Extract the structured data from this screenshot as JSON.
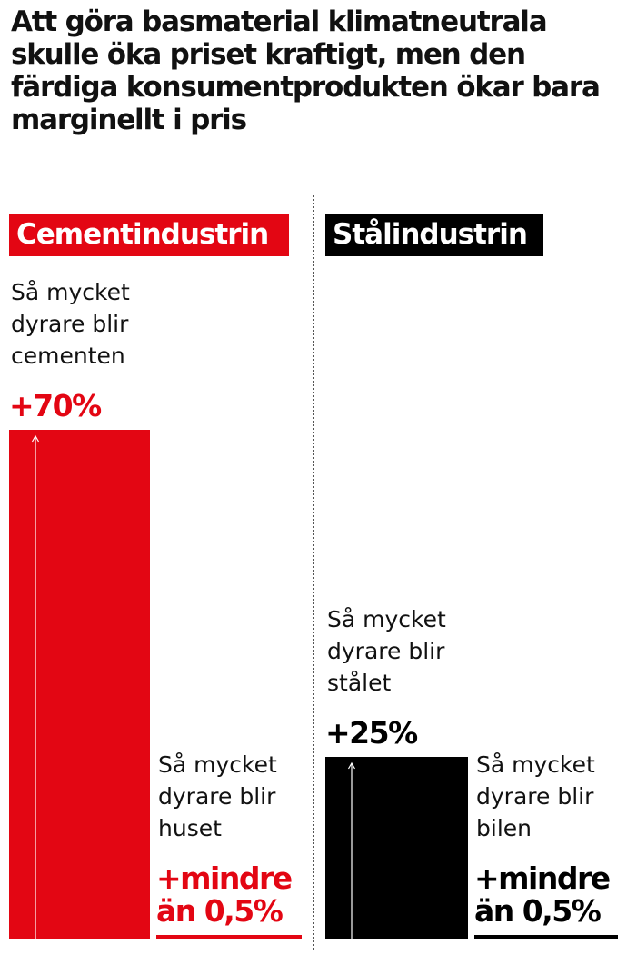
{
  "title": "Att göra basmaterial klimatneutrala skulle öka priset kraftigt, men den färdiga konsumentprodukten ökar bara marginellt i pris",
  "chart_data": [
    {
      "type": "bar",
      "title": "Cementindustrin",
      "color": "#e30613",
      "categories": [
        "Så mycket dyrare blir cementen",
        "Så mycket dyrare blir huset"
      ],
      "values": [
        70,
        0.5
      ],
      "value_labels": [
        "+70%",
        "+mindre än 0,5%"
      ]
    },
    {
      "type": "bar",
      "title": "Stålindustrin",
      "color": "#000000",
      "categories": [
        "Så mycket dyrare blir stålet",
        "Så mycket dyrare blir bilen"
      ],
      "values": [
        25,
        0.5
      ],
      "value_labels": [
        "+25%",
        "+mindre än 0,5%"
      ]
    }
  ]
}
